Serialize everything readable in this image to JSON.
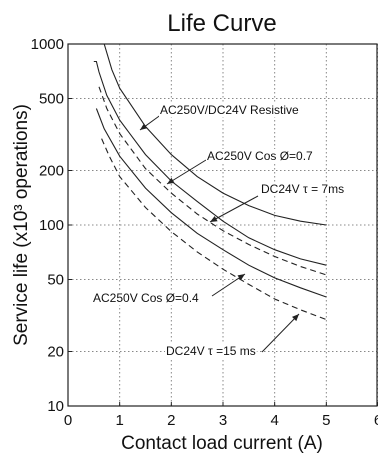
{
  "chart_data": {
    "type": "line",
    "title": "Life Curve",
    "xlabel": "Contact load current (A)",
    "ylabel": "Service life (x10³ operations)",
    "xlim": [
      0,
      6
    ],
    "ylim": [
      10,
      1000
    ],
    "y_scale": "log",
    "grid": true,
    "x_ticks": [
      0,
      1,
      2,
      3,
      4,
      5,
      6
    ],
    "x_tick_labels": [
      "0",
      "1",
      "2",
      "3",
      "4",
      "5",
      "6"
    ],
    "y_ticks": [
      10,
      20,
      50,
      100,
      200,
      500,
      1000
    ],
    "y_tick_labels": [
      "10",
      "20",
      "50",
      "100",
      "200",
      "500",
      "1000"
    ],
    "series": [
      {
        "name": "AC250V/DC24V Resistive",
        "style": "solid",
        "x": [
          0.7,
          0.85,
          1.0,
          1.5,
          2.0,
          2.5,
          3.0,
          3.5,
          4.0,
          4.5,
          5.0
        ],
        "y": [
          1000,
          720,
          570,
          350,
          245,
          185,
          150,
          128,
          113,
          105,
          100
        ]
      },
      {
        "name": "AC250V Cos Ø=0.7",
        "style": "solid",
        "x": [
          0.5,
          0.55,
          0.6,
          0.75,
          1.0,
          1.5,
          2.0,
          2.5,
          3.0,
          3.5,
          4.0,
          4.5,
          5.0
        ],
        "y": [
          800,
          800,
          700,
          520,
          380,
          245,
          175,
          135,
          105,
          85,
          73,
          65,
          60
        ]
      },
      {
        "name": "DC24V τ = 7ms",
        "style": "dashed",
        "x": [
          0.6,
          0.75,
          1.0,
          1.5,
          2.0,
          2.5,
          3.0,
          3.5,
          4.0,
          4.5,
          5.0
        ],
        "y": [
          580,
          440,
          320,
          205,
          150,
          115,
          93,
          78,
          67,
          59,
          53
        ]
      },
      {
        "name": "AC250V Cos Ø=0.4",
        "style": "solid",
        "x": [
          0.55,
          0.7,
          1.0,
          1.5,
          2.0,
          2.5,
          3.0,
          3.5,
          4.0,
          4.5,
          5.0
        ],
        "y": [
          440,
          340,
          240,
          160,
          117,
          90,
          73,
          60,
          51,
          45,
          40
        ]
      },
      {
        "name": "DC24V τ =15 ms",
        "style": "dashed",
        "x": [
          0.65,
          0.8,
          1.0,
          1.5,
          2.0,
          2.5,
          3.0,
          3.5,
          4.0,
          4.5,
          5.0
        ],
        "y": [
          300,
          240,
          185,
          125,
          92,
          71,
          57,
          47,
          39,
          34,
          30
        ]
      }
    ],
    "annotations": [
      {
        "text": "AC250V/DC24V Resistive",
        "points_to_series": 0
      },
      {
        "text": "AC250V Cos Ø=0.7",
        "points_to_series": 1
      },
      {
        "text": "DC24V   τ = 7ms",
        "points_to_series": 2
      },
      {
        "text": "AC250V Cos Ø=0.4",
        "points_to_series": 3
      },
      {
        "text": "DC24V  τ =15 ms",
        "points_to_series": 4
      }
    ]
  }
}
